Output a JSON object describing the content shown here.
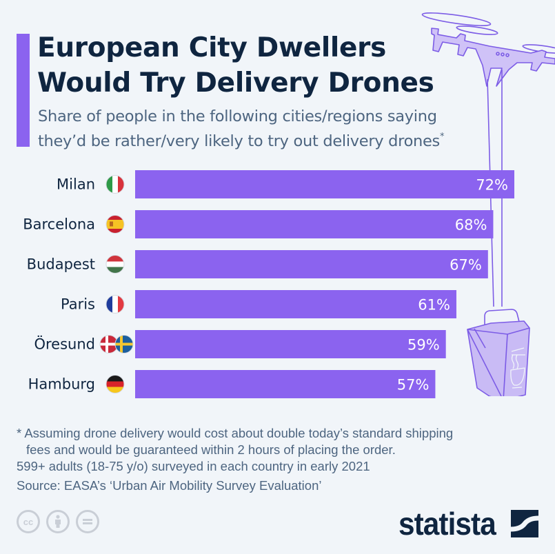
{
  "header": {
    "title_line1": "European City Dwellers",
    "title_line2": "Would Try Delivery Drones",
    "subtitle_line1": "Share of people in the following cities/regions saying",
    "subtitle_line2": "they’d be rather/very likely to try out delivery drones",
    "subtitle_marker": "*"
  },
  "colors": {
    "bar": "#8b63ef",
    "accent": "#8b63ef",
    "title": "#0f2540",
    "text": "#4d6580",
    "background": "#f1f5f9",
    "illustration_fill": "#c9bbf5",
    "illustration_stroke": "#7c5ce6"
  },
  "chart_data": {
    "type": "bar",
    "orientation": "horizontal",
    "title": "European City Dwellers Would Try Delivery Drones",
    "subtitle": "Share of people in the following cities/regions saying they’d be rather/very likely to try out delivery drones*",
    "categories": [
      "Milan",
      "Barcelona",
      "Budapest",
      "Paris",
      "Öresund",
      "Hamburg"
    ],
    "flags": [
      [
        "italy"
      ],
      [
        "spain"
      ],
      [
        "hungary"
      ],
      [
        "france"
      ],
      [
        "denmark",
        "sweden"
      ],
      [
        "germany"
      ]
    ],
    "values": [
      72,
      68,
      67,
      61,
      59,
      57
    ],
    "value_labels": [
      "72%",
      "68%",
      "67%",
      "61%",
      "59%",
      "57%"
    ],
    "unit": "%",
    "xlim": [
      0,
      72
    ],
    "xlabel": "",
    "ylabel": "",
    "grid": false,
    "legend": "none"
  },
  "footer": {
    "note_line1": "* Assuming drone delivery would cost about double today’s standard shipping",
    "note_line2": "fees and would be guaranteed within 2 hours of placing the order.",
    "sample": "599+ adults (18-75 y/o) surveyed in each country in early 2021",
    "source": "Source: EASA’s ‘Urban Air Mobility Survey Evaluation’",
    "license_icons": [
      "creative-commons-icon",
      "attribution-icon",
      "no-derivatives-icon"
    ],
    "cc_label": "cc",
    "brand": "statista"
  }
}
